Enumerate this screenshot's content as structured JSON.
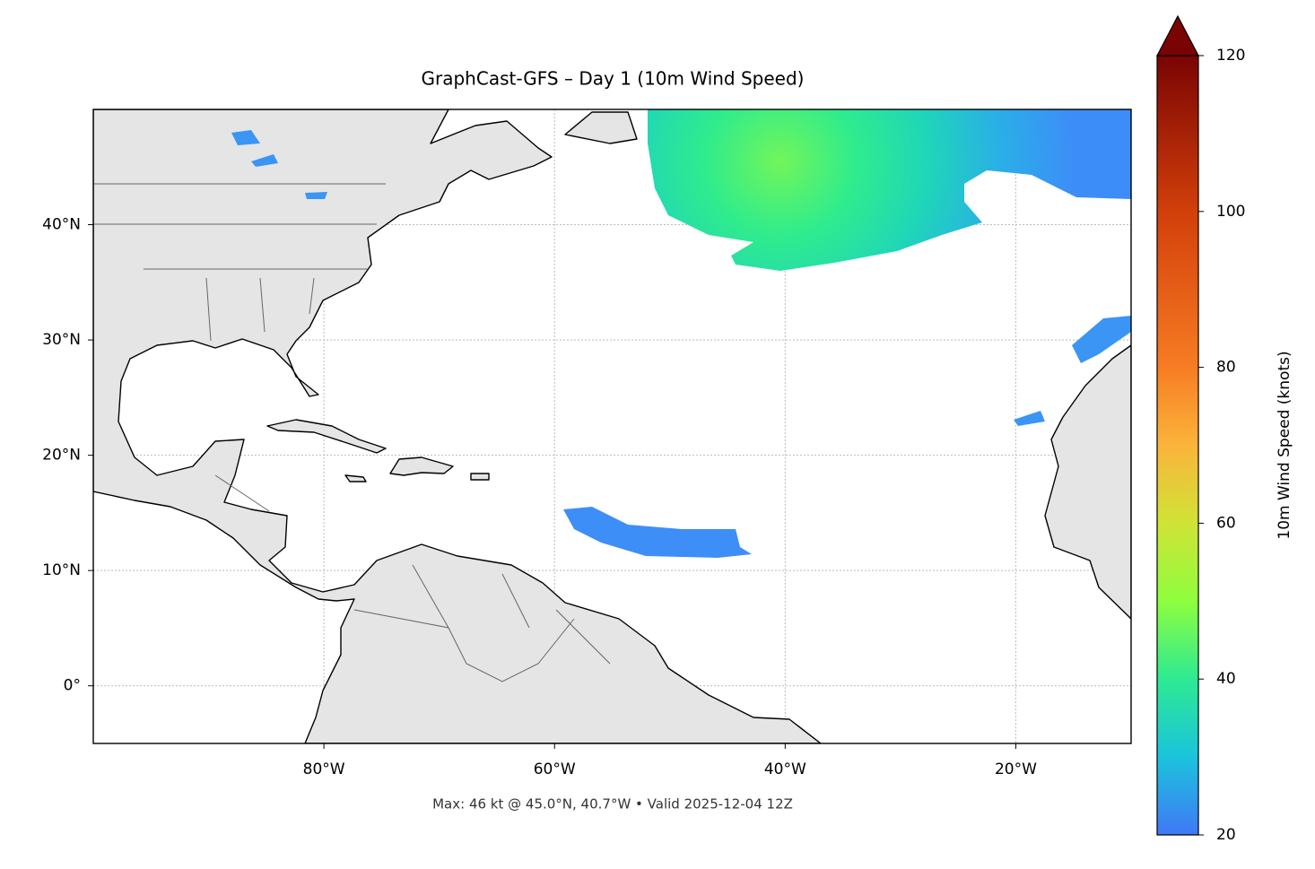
{
  "chart_data": {
    "type": "map",
    "title": "GraphCast-GFS – Day 1 (10m Wind Speed)",
    "footer": "Max: 46 kt @ 45.0°N, 40.7°W • Valid 2025-12-04 12Z",
    "xlim": [
      -100,
      -10
    ],
    "ylim": [
      -5,
      50
    ],
    "xticks": [
      {
        "value": -80,
        "label": "80°W"
      },
      {
        "value": -60,
        "label": "60°W"
      },
      {
        "value": -40,
        "label": "40°W"
      },
      {
        "value": -20,
        "label": "20°W"
      }
    ],
    "yticks": [
      {
        "value": 0,
        "label": "0°"
      },
      {
        "value": 10,
        "label": "10°N"
      },
      {
        "value": 20,
        "label": "20°N"
      },
      {
        "value": 30,
        "label": "30°N"
      },
      {
        "value": 40,
        "label": "40°N"
      }
    ],
    "grid": true,
    "colorbar": {
      "label": "10m Wind Speed (knots)",
      "lim": [
        20,
        120
      ],
      "ticks": [
        20,
        40,
        60,
        80,
        100,
        120
      ],
      "extend": "max",
      "colormap": "turbo"
    }
  }
}
